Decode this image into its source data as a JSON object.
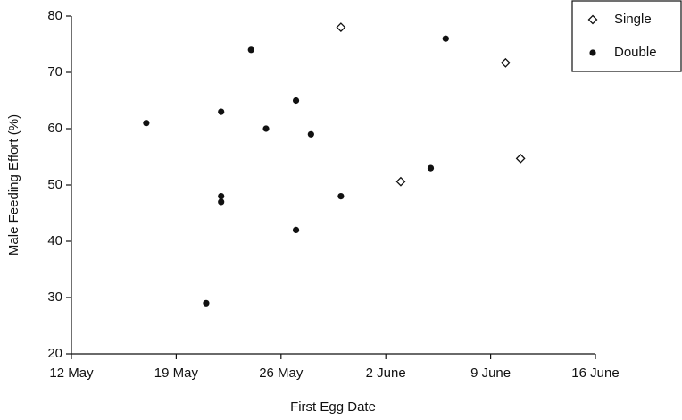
{
  "chart_data": {
    "type": "scatter",
    "x_label": "First Egg Date",
    "y_label": "Male Feeding Effort (%)",
    "xlim": [
      12,
      47
    ],
    "xticks": [
      {
        "value": 12,
        "label": "12 May"
      },
      {
        "value": 19,
        "label": "19 May"
      },
      {
        "value": 26,
        "label": "26 May"
      },
      {
        "value": 33,
        "label": "2 June"
      },
      {
        "value": 40,
        "label": "9 June"
      },
      {
        "value": 47,
        "label": "16 June"
      }
    ],
    "ylim": [
      20,
      80
    ],
    "yticks": [
      20,
      30,
      40,
      50,
      60,
      70,
      80
    ],
    "grid": false,
    "legend": "top-right",
    "series": [
      {
        "name": "Single",
        "color": "#111111",
        "marker": "diamond-open",
        "x": [
          30,
          34,
          41,
          42
        ],
        "values": [
          78,
          50.6,
          71.7,
          54.7
        ]
      },
      {
        "name": "Double",
        "color": "#111111",
        "marker": "circle-filled",
        "x": [
          17,
          21,
          22,
          22,
          22,
          24,
          25,
          27,
          27,
          28,
          30,
          36,
          37
        ],
        "values": [
          61,
          29,
          63,
          48,
          47,
          74,
          60,
          65,
          42,
          59,
          48,
          53,
          76
        ]
      }
    ]
  }
}
